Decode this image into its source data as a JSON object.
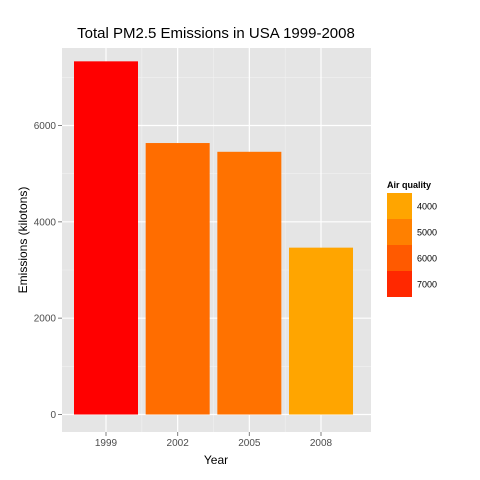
{
  "chart_data": {
    "type": "bar",
    "title": "Total PM2.5 Emissions in USA 1999-2008",
    "xlabel": "Year",
    "ylabel": "Emissions (kilotons)",
    "categories": [
      "1999",
      "2002",
      "2005",
      "2008"
    ],
    "values": [
      7332,
      5636,
      5454,
      3464
    ],
    "bar_colors": [
      "#ff0000",
      "#ff6d00",
      "#ff7200",
      "#ffa500"
    ],
    "ylim": [
      0,
      7700
    ],
    "yticks": [
      0,
      2000,
      4000,
      6000
    ],
    "ytick_labels": [
      "0",
      "2000",
      "4000",
      "6000"
    ],
    "grid": true,
    "panel_background": "#e5e5e5",
    "legend": {
      "title": "Air quality",
      "placement": "right",
      "entries": [
        {
          "label": "4000",
          "color": "#ffa500"
        },
        {
          "label": "5000",
          "color": "#ff8000"
        },
        {
          "label": "6000",
          "color": "#ff5a00"
        },
        {
          "label": "7000",
          "color": "#ff2800"
        }
      ]
    }
  }
}
